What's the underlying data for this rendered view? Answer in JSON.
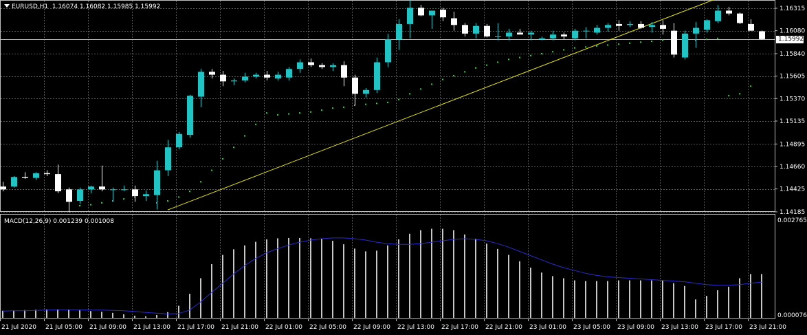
{
  "header": {
    "symbol": "EURUSD,H1",
    "ohlc": "1.16074 1.16082 1.15985 1.15992"
  },
  "current_price": "1.15992",
  "macd_header": "MACD(12,26,9) 0.001239 0.001008",
  "colors": {
    "background": "#000000",
    "grid": "#5a5a5a",
    "bull": "#20C4C4",
    "bear": "#FFFFFF",
    "trendline": "#E6E600",
    "sar": "#22DD22",
    "macd_hist": "#C8C8C8",
    "macd_signal": "#2A2AD0"
  },
  "chart_data": [
    {
      "type": "candlestick",
      "symbol": "EURUSD",
      "timeframe": "H1",
      "y_ticks": [
        "1.16315",
        "1.16080",
        "1.15840",
        "1.15605",
        "1.15370",
        "1.15135",
        "1.14895",
        "1.14660",
        "1.14425",
        "1.14185"
      ],
      "ylim": [
        1.14185,
        1.16315
      ],
      "x_ticks": [
        "21 Jul 2020",
        "21 Jul 05:00",
        "21 Jul 09:00",
        "21 Jul 13:00",
        "21 Jul 17:00",
        "21 Jul 21:00",
        "22 Jul 01:00",
        "22 Jul 05:00",
        "22 Jul 09:00",
        "22 Jul 13:00",
        "22 Jul 17:00",
        "22 Jul 21:00",
        "23 Jul 01:00",
        "23 Jul 05:00",
        "23 Jul 09:00",
        "23 Jul 13:00",
        "23 Jul 17:00",
        "23 Jul 21:00"
      ],
      "candles": [
        [
          1.1445,
          1.145,
          1.144,
          1.1442
        ],
        [
          1.1445,
          1.1456,
          1.1444,
          1.1455
        ],
        [
          1.1455,
          1.146,
          1.1453,
          1.1454
        ],
        [
          1.1454,
          1.146,
          1.1452,
          1.1459
        ],
        [
          1.1459,
          1.1462,
          1.1456,
          1.1458
        ],
        [
          1.1458,
          1.1468,
          1.1438,
          1.144
        ],
        [
          1.1442,
          1.1444,
          1.1418,
          1.1429
        ],
        [
          1.143,
          1.1444,
          1.1427,
          1.1442
        ],
        [
          1.1442,
          1.1446,
          1.1438,
          1.1445
        ],
        [
          1.1445,
          1.1467,
          1.144,
          1.1442
        ],
        [
          1.1442,
          1.1444,
          1.1429,
          1.1442
        ],
        [
          1.1442,
          1.1446,
          1.144,
          1.1442
        ],
        [
          1.1442,
          1.1446,
          1.1429,
          1.1435
        ],
        [
          1.1435,
          1.1441,
          1.143,
          1.1437
        ],
        [
          1.1436,
          1.1472,
          1.1421,
          1.1462
        ],
        [
          1.1462,
          1.1494,
          1.1456,
          1.1486
        ],
        [
          1.1486,
          1.1502,
          1.1484,
          1.15
        ],
        [
          1.1499,
          1.1541,
          1.1496,
          1.154
        ],
        [
          1.1539,
          1.1568,
          1.1528,
          1.1565
        ],
        [
          1.1565,
          1.1568,
          1.1558,
          1.1562
        ],
        [
          1.1562,
          1.1566,
          1.155,
          1.1555
        ],
        [
          1.1555,
          1.1558,
          1.1551,
          1.1556
        ],
        [
          1.1556,
          1.1564,
          1.1554,
          1.156
        ],
        [
          1.156,
          1.1564,
          1.1558,
          1.1562
        ],
        [
          1.1562,
          1.1566,
          1.1556,
          1.1559
        ],
        [
          1.1558,
          1.1565,
          1.1556,
          1.1562
        ],
        [
          1.1559,
          1.157,
          1.1556,
          1.1568
        ],
        [
          1.1568,
          1.1578,
          1.1564,
          1.1575
        ],
        [
          1.1575,
          1.1579,
          1.157,
          1.1572
        ],
        [
          1.1572,
          1.1574,
          1.1568,
          1.157
        ],
        [
          1.157,
          1.1574,
          1.1566,
          1.1572
        ],
        [
          1.1572,
          1.1576,
          1.155,
          1.1559
        ],
        [
          1.1559,
          1.1562,
          1.153,
          1.1542
        ],
        [
          1.1542,
          1.1548,
          1.1538,
          1.1546
        ],
        [
          1.1546,
          1.158,
          1.1543,
          1.1575
        ],
        [
          1.1575,
          1.1605,
          1.157,
          1.1599
        ],
        [
          1.1599,
          1.162,
          1.1588,
          1.1615
        ],
        [
          1.1615,
          1.164,
          1.16,
          1.1632
        ],
        [
          1.1632,
          1.1635,
          1.1623,
          1.1624
        ],
        [
          1.1624,
          1.1629,
          1.161,
          1.1629
        ],
        [
          1.163,
          1.1632,
          1.1618,
          1.1622
        ],
        [
          1.1621,
          1.1628,
          1.1608,
          1.1614
        ],
        [
          1.1614,
          1.1616,
          1.1602,
          1.1605
        ],
        [
          1.1605,
          1.1616,
          1.16,
          1.1613
        ],
        [
          1.1613,
          1.1615,
          1.1601,
          1.1602
        ],
        [
          1.1602,
          1.1616,
          1.1598,
          1.1602
        ],
        [
          1.1602,
          1.161,
          1.1598,
          1.1606
        ],
        [
          1.1606,
          1.161,
          1.1604,
          1.1604
        ],
        [
          1.1604,
          1.1608,
          1.1598,
          1.1606
        ],
        [
          1.1599,
          1.1602,
          1.1598,
          1.16
        ],
        [
          1.16,
          1.1608,
          1.1598,
          1.1604
        ],
        [
          1.1604,
          1.1606,
          1.1599,
          1.1602
        ],
        [
          1.16,
          1.161,
          1.1598,
          1.1608
        ],
        [
          1.1608,
          1.1612,
          1.16,
          1.1608
        ],
        [
          1.1606,
          1.1614,
          1.1604,
          1.1611
        ],
        [
          1.1611,
          1.1616,
          1.1607,
          1.1614
        ],
        [
          1.1615,
          1.1619,
          1.1608,
          1.1613
        ],
        [
          1.1614,
          1.1618,
          1.1612,
          1.1615
        ],
        [
          1.1615,
          1.1618,
          1.161,
          1.1611
        ],
        [
          1.1612,
          1.1617,
          1.1606,
          1.1614
        ],
        [
          1.1614,
          1.1619,
          1.1604,
          1.161
        ],
        [
          1.1608,
          1.1616,
          1.158,
          1.1583
        ],
        [
          1.158,
          1.1608,
          1.1578,
          1.1605
        ],
        [
          1.1605,
          1.1617,
          1.159,
          1.1611
        ],
        [
          1.1609,
          1.162,
          1.1606,
          1.1619
        ],
        [
          1.1618,
          1.1635,
          1.1616,
          1.1629
        ],
        [
          1.1629,
          1.1633,
          1.1624,
          1.1626
        ],
        [
          1.1626,
          1.1627,
          1.1615,
          1.1616
        ],
        [
          1.1615,
          1.162,
          1.1608,
          1.1608
        ],
        [
          1.16074,
          1.16082,
          1.15985,
          1.15992
        ]
      ],
      "sar": [
        null,
        null,
        null,
        null,
        null,
        null,
        null,
        1.1425,
        1.1426,
        1.1428,
        1.143,
        1.1432,
        1.1434,
        1.1436,
        1.1428,
        1.143,
        1.1434,
        1.144,
        1.145,
        1.1462,
        1.1474,
        1.1486,
        1.1498,
        1.151,
        1.1522,
        1.152,
        1.1521,
        1.1522,
        1.1523,
        1.1525,
        1.1527,
        1.1528,
        1.153,
        1.1531,
        1.1532,
        1.1533,
        1.1536,
        1.1542,
        1.1547,
        1.1552,
        1.1557,
        1.1561,
        1.1565,
        1.1569,
        1.1572,
        1.1575,
        1.1578,
        1.158,
        1.1582,
        1.1584,
        1.1586,
        1.1588,
        1.159,
        1.1591,
        1.1592,
        1.1593,
        1.1594,
        1.1595,
        1.1596,
        1.1597,
        1.1598,
        1.1598,
        1.1598,
        1.1598,
        1.1599,
        1.16,
        1.154,
        1.1542,
        1.155,
        null
      ],
      "trendline": {
        "from": [
          15,
          1.14205
        ],
        "to": [
          65,
          1.1642
        ]
      }
    },
    {
      "type": "bar",
      "name": "MACD",
      "y_ticks": [
        "0.002765",
        "0.000076"
      ],
      "ylim": [
        0.0,
        0.002765
      ],
      "histogram": [
        0.0002,
        0.00021,
        0.00022,
        0.00023,
        0.00024,
        0.00024,
        0.00023,
        0.00021,
        0.00019,
        0.00017,
        0.00014,
        0.0001,
        6e-05,
        4e-05,
        8e-05,
        0.00016,
        0.00034,
        0.00068,
        0.00112,
        0.00152,
        0.00178,
        0.00194,
        0.00205,
        0.00215,
        0.00222,
        0.00225,
        0.00226,
        0.00226,
        0.00225,
        0.00223,
        0.00218,
        0.00208,
        0.00196,
        0.00188,
        0.0019,
        0.00205,
        0.00222,
        0.00238,
        0.00248,
        0.00252,
        0.00252,
        0.00248,
        0.00236,
        0.00224,
        0.0021,
        0.00195,
        0.00178,
        0.0016,
        0.00142,
        0.00128,
        0.00118,
        0.00112,
        0.00106,
        0.00104,
        0.00104,
        0.00104,
        0.00106,
        0.00106,
        0.00106,
        0.00106,
        0.00106,
        0.00098,
        0.0009,
        0.00052,
        0.00062,
        0.00078,
        0.00088,
        0.00112,
        0.00124,
        0.00124
      ],
      "signal": [
        0.00019,
        0.0002,
        0.0002,
        0.00021,
        0.00022,
        0.00023,
        0.00023,
        0.00023,
        0.00022,
        0.00022,
        0.00021,
        0.0002,
        0.00018,
        0.00015,
        0.00013,
        0.00011,
        0.00012,
        0.00022,
        0.00045,
        0.00072,
        0.00098,
        0.00124,
        0.00148,
        0.00168,
        0.00184,
        0.00196,
        0.00206,
        0.00214,
        0.0022,
        0.00224,
        0.00226,
        0.00226,
        0.00224,
        0.0022,
        0.00214,
        0.0021,
        0.00208,
        0.00208,
        0.0021,
        0.00214,
        0.00218,
        0.00222,
        0.00224,
        0.00222,
        0.00218,
        0.0021,
        0.002,
        0.00188,
        0.00176,
        0.00164,
        0.00152,
        0.00142,
        0.00134,
        0.00126,
        0.0012,
        0.00116,
        0.00114,
        0.00112,
        0.0011,
        0.00108,
        0.00106,
        0.00104,
        0.00102,
        0.00098,
        0.00094,
        0.00092,
        0.00092,
        0.00094,
        0.00098,
        0.00101
      ]
    }
  ]
}
